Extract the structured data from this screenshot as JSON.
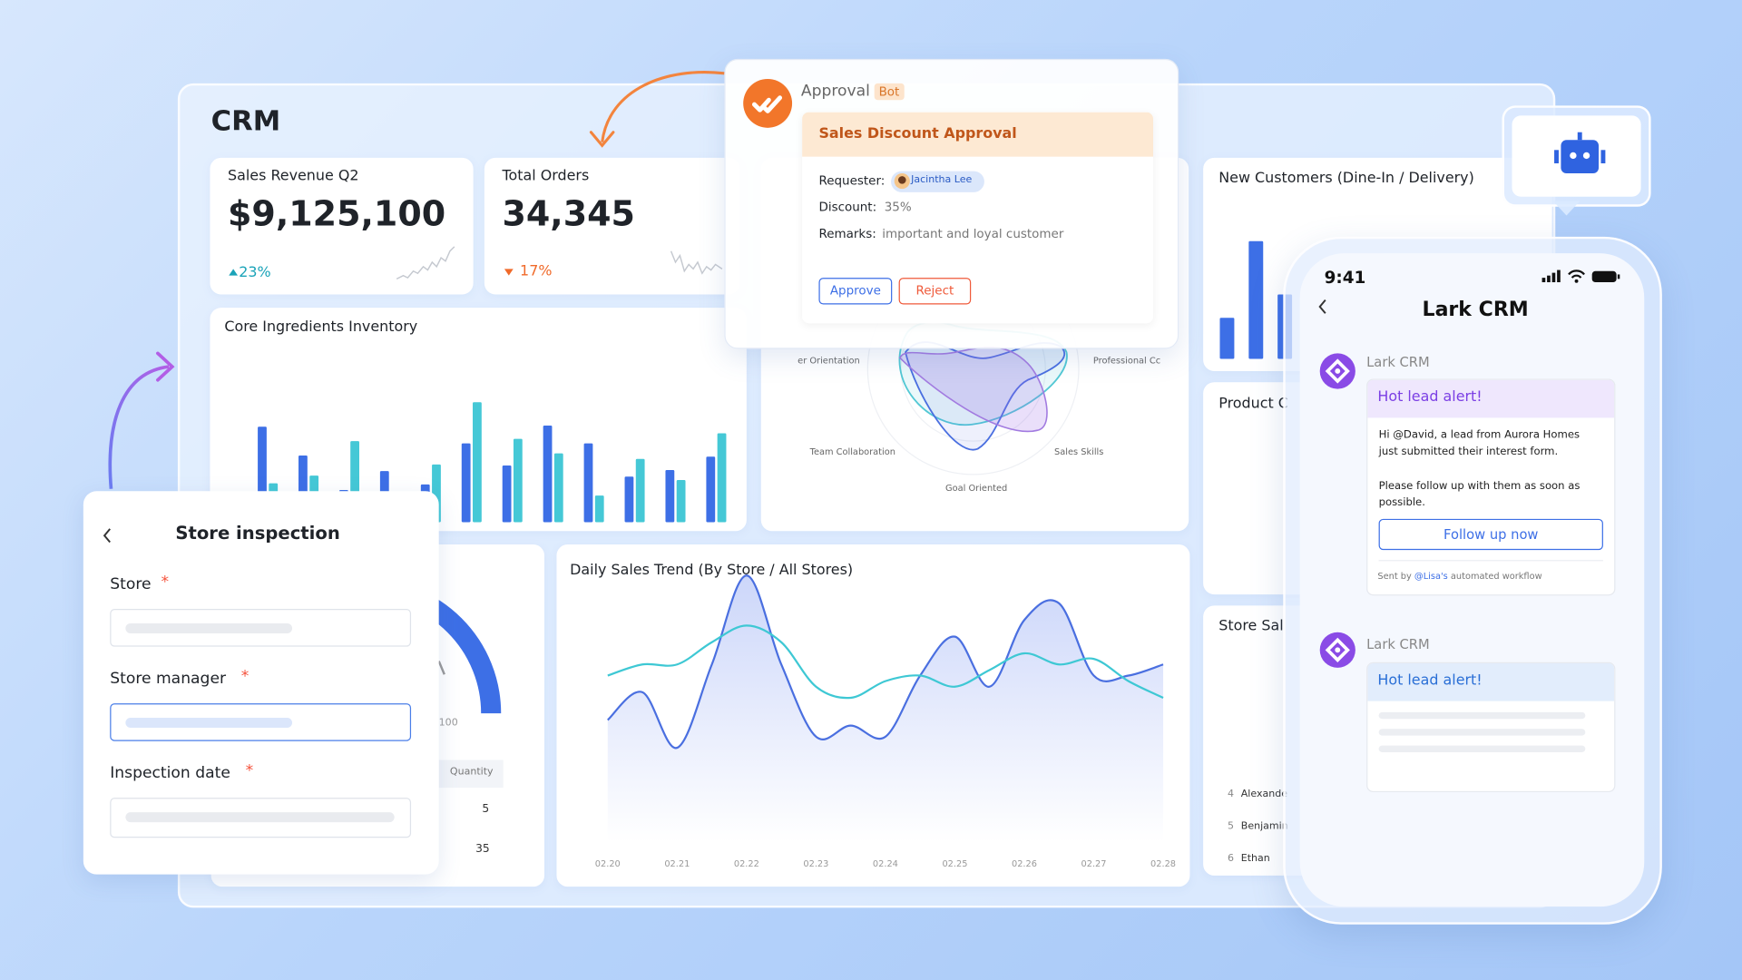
{
  "dashboard": {
    "title": "CRM",
    "sales_revenue": {
      "title": "Sales Revenue Q2",
      "value": "$9,125,100",
      "change": "23%"
    },
    "total_orders": {
      "title": "Total Orders",
      "value": "34,345",
      "change": "17%"
    },
    "inventory": {
      "type": "bar",
      "title": "Core Ingredients Inventory",
      "series": [
        {
          "color": "#3d6fe6",
          "values": [
            86,
            60,
            29,
            46,
            34,
            71,
            51,
            87,
            71,
            41,
            47,
            59
          ]
        },
        {
          "color": "#45c8d6",
          "values": [
            35,
            42,
            73,
            null,
            52,
            108,
            75,
            62,
            24,
            57,
            38,
            80
          ]
        }
      ]
    },
    "radar": {
      "labels": [
        "er Orientation",
        "Professional Cc",
        "Team Collaboration",
        "Sales Skills",
        "Goal Oriented"
      ]
    },
    "new_customers": {
      "type": "bar",
      "title": "New Customers (Dine-In / Delivery)",
      "color": "#3d6fe6",
      "values": [
        37,
        106,
        58
      ]
    },
    "product": {
      "title": "Product C"
    },
    "store_sales": {
      "title": "Store Sal",
      "rows": [
        [
          "4",
          "Alexande"
        ],
        [
          "5",
          "Benjamin"
        ],
        [
          "6",
          "Ethan"
        ]
      ]
    },
    "gauge": {
      "label": 100
    },
    "quantity_table": {
      "header": "Quantity",
      "rows": [
        5,
        35
      ]
    },
    "daily_sales": {
      "type": "line",
      "title": "Daily Sales Trend (By Store / All Stores)",
      "x": [
        "02.20",
        null,
        "02.21",
        null,
        "02.22",
        null,
        "02.23",
        null,
        "02.24",
        null,
        "02.25",
        null,
        "02.26",
        null,
        "02.27",
        null,
        "02.28"
      ],
      "series": [
        {
          "color": "#4a6fe0",
          "values": [
            110,
            135,
            85,
            160,
            240,
            160,
            95,
            105,
            95,
            150,
            185,
            140,
            200,
            215,
            150,
            150,
            160
          ]
        },
        {
          "color": "#3ec8d4",
          "values": [
            150,
            160,
            160,
            180,
            195,
            180,
            140,
            130,
            145,
            150,
            140,
            155,
            170,
            160,
            165,
            145,
            130
          ]
        }
      ]
    }
  },
  "approval": {
    "app": "Approval",
    "tag": "Bot",
    "title": "Sales Discount Approval",
    "fields": [
      {
        "label": "Requester:",
        "value": "Jacintha Lee"
      },
      {
        "label": "Discount:",
        "value": "35%"
      },
      {
        "label": "Remarks:",
        "value": "important and loyal customer"
      }
    ],
    "actions": [
      "Approve",
      "Reject"
    ]
  },
  "inspection": {
    "title": "Store inspection",
    "fields": [
      "Store",
      "Store manager",
      "Inspection date"
    ],
    "required": "*"
  },
  "phone": {
    "time": "9:41",
    "title": "Lark CRM",
    "messages": [
      {
        "sender": "Lark CRM",
        "header": "Hot lead alert!",
        "body": [
          "Hi @David, a lead from Aurora Homes just submitted their interest form.",
          "Please follow up with them as soon as possible."
        ],
        "button": "Follow up now",
        "footer": [
          "Sent by",
          "@Lisa's",
          "automated workflow"
        ]
      },
      {
        "sender": "Lark CRM",
        "header": "Hot lead alert!"
      }
    ]
  }
}
